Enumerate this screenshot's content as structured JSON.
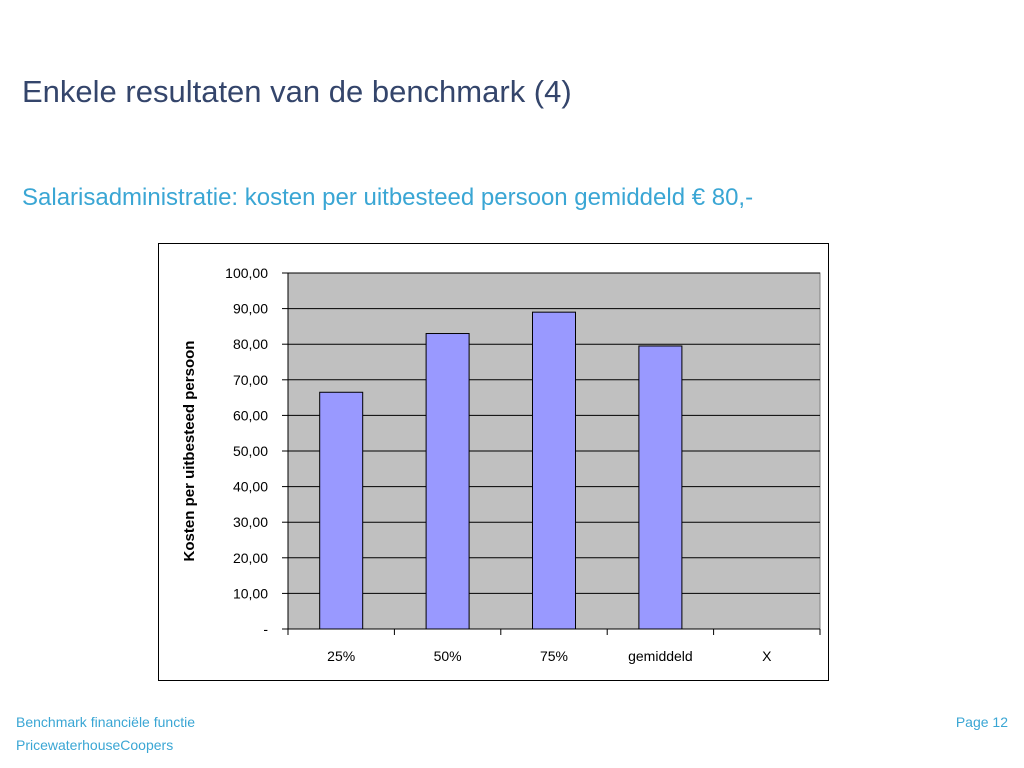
{
  "slide": {
    "title": "Enkele resultaten van de benchmark (4)",
    "subtitle": "Salarisadministratie: kosten per uitbesteed persoon gemiddeld € 80,-"
  },
  "footer": {
    "line1": "Benchmark financiële functie",
    "line2": "PricewaterhouseCoopers",
    "page": "Page 12"
  },
  "chart_data": {
    "type": "bar",
    "categories": [
      "25%",
      "50%",
      "75%",
      "gemiddeld",
      "X"
    ],
    "values": [
      66.5,
      83.0,
      89.0,
      79.5,
      null
    ],
    "title": "",
    "xlabel": "",
    "ylabel": "Kosten per uitbesteed persoon",
    "ylim": [
      0,
      100
    ],
    "yticks": [
      0,
      10,
      20,
      30,
      40,
      50,
      60,
      70,
      80,
      90,
      100
    ],
    "ytick_labels": [
      "-",
      "10,00",
      "20,00",
      "30,00",
      "40,00",
      "50,00",
      "60,00",
      "70,00",
      "80,00",
      "90,00",
      "100,00"
    ],
    "grid": true,
    "bar_color": "#9999ff",
    "plot_background": "#c0c0c0"
  }
}
